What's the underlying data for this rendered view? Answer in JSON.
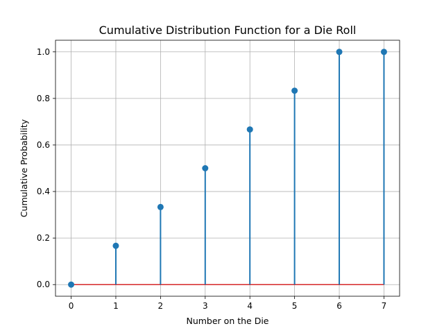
{
  "chart_data": {
    "type": "stem",
    "title": "Cumulative Distribution Function for a Die Roll",
    "xlabel": "Number on the Die",
    "ylabel": "Cumulative Probability",
    "x": [
      0,
      1,
      2,
      3,
      4,
      5,
      6,
      7
    ],
    "y": [
      0.0,
      0.1667,
      0.3333,
      0.5,
      0.6667,
      0.8333,
      1.0,
      1.0
    ],
    "xlim": [
      -0.35,
      7.35
    ],
    "ylim": [
      -0.05,
      1.05
    ],
    "xticks": [
      0,
      1,
      2,
      3,
      4,
      5,
      6,
      7
    ],
    "yticks": [
      0.0,
      0.2,
      0.4,
      0.6,
      0.8,
      1.0
    ],
    "xtick_labels": [
      "0",
      "1",
      "2",
      "3",
      "4",
      "5",
      "6",
      "7"
    ],
    "ytick_labels": [
      "0.0",
      "0.2",
      "0.4",
      "0.6",
      "0.8",
      "1.0"
    ],
    "grid": true,
    "colors": {
      "stem": "#1f77b4",
      "marker": "#1f77b4",
      "baseline": "#d62728",
      "grid": "#b0b0b0"
    }
  }
}
